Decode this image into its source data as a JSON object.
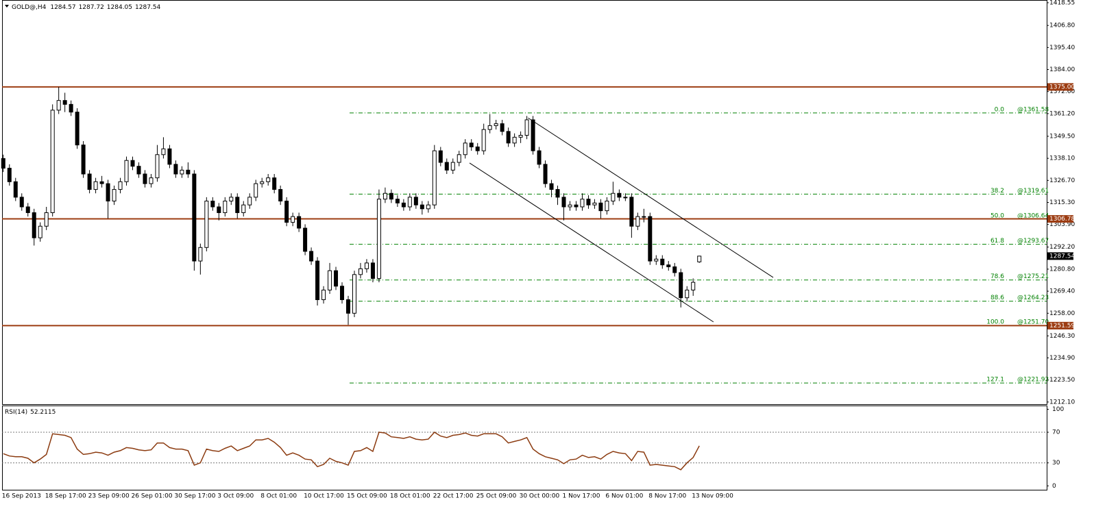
{
  "chart_data": {
    "type": "candlestick",
    "title": "GOLD@,H4",
    "categories": [
      "16 Sep 2013",
      null,
      null,
      null,
      null,
      null,
      null,
      "18 Sep 17:00",
      null,
      null,
      null,
      null,
      null,
      null,
      "23 Sep 09:00",
      null,
      null,
      null,
      null,
      null,
      null,
      "26 Sep 01:00",
      null,
      null,
      null,
      null,
      null,
      null,
      "30 Sep 17:00",
      null,
      null,
      null,
      null,
      null,
      null,
      "3 Oct 09:00",
      null,
      null,
      null,
      null,
      null,
      null,
      "8 Oct 01:00",
      null,
      null,
      null,
      null,
      null,
      null,
      "10 Oct 17:00",
      null,
      null,
      null,
      null,
      null,
      null,
      "15 Oct 09:00",
      null,
      null,
      null,
      null,
      null,
      null,
      "18 Oct 01:00",
      null,
      null,
      null,
      null,
      null,
      null,
      "22 Oct 17:00",
      null,
      null,
      null,
      null,
      null,
      null,
      "25 Oct 09:00",
      null,
      null,
      null,
      null,
      null,
      null,
      "30 Oct 00:00",
      null,
      null,
      null,
      null,
      null,
      null,
      "1 Nov 17:00",
      null,
      null,
      null,
      null,
      null,
      null,
      "6 Nov 01:00",
      null,
      null,
      null,
      null,
      null,
      null,
      "8 Nov 17:00",
      null,
      null,
      null,
      null,
      null,
      null,
      "13 Nov 09:00",
      null
    ],
    "open": [
      1338,
      1333,
      1326,
      1318,
      1313,
      1310,
      1297,
      1303,
      1310,
      1363,
      1368,
      1366,
      1362,
      1345,
      1330,
      1322,
      1326,
      1325,
      1316,
      1322,
      1326,
      1337,
      1334,
      1330,
      1325,
      1328,
      1340,
      1343,
      1335,
      1330,
      1332,
      1330,
      1285,
      1292,
      1316,
      1313,
      1310,
      1316,
      1318,
      1310,
      1314,
      1318,
      1325,
      1326,
      1328,
      1322,
      1316,
      1305,
      1308,
      1302,
      1290,
      1285,
      1265,
      1270,
      1280,
      1272,
      1265,
      1258,
      1278,
      1281,
      1284,
      1276,
      1317,
      1320,
      1317,
      1315,
      1313,
      1318,
      1314,
      1312,
      1314,
      1342,
      1336,
      1332,
      1336,
      1340,
      1346,
      1344,
      1342,
      1353,
      1355,
      1356,
      1352,
      1346,
      1349,
      1350,
      1358,
      1342,
      1335,
      1325,
      1322,
      1318,
      1313,
      1314,
      1313,
      1317,
      1314,
      1315,
      1311,
      1316,
      1320,
      1318,
      1318,
      1303,
      1308,
      1308,
      1285,
      1286,
      1283,
      1282,
      1279,
      1266,
      1270,
      1284.57
    ],
    "high": [
      1340,
      1335,
      1328,
      1320,
      1315,
      1312,
      1305,
      1313,
      1366,
      1375,
      1372,
      1368,
      1364,
      1347,
      1332,
      1328,
      1329,
      1327,
      1324,
      1328,
      1339,
      1339,
      1336,
      1332,
      1330,
      1345,
      1349,
      1345,
      1337,
      1334,
      1336,
      1332,
      1294,
      1318,
      1318,
      1315,
      1318,
      1320,
      1320,
      1316,
      1320,
      1327,
      1328,
      1330,
      1330,
      1324,
      1318,
      1310,
      1310,
      1304,
      1292,
      1287,
      1272,
      1284,
      1282,
      1274,
      1267,
      1280,
      1284,
      1286,
      1286,
      1322,
      1323,
      1322,
      1319,
      1317,
      1320,
      1320,
      1316,
      1316,
      1345,
      1344,
      1338,
      1338,
      1342,
      1348,
      1348,
      1346,
      1356,
      1361,
      1358,
      1358,
      1354,
      1351,
      1352,
      1360,
      1360,
      1344,
      1337,
      1327,
      1324,
      1320,
      1316,
      1316,
      1320,
      1319,
      1317,
      1317,
      1318,
      1326,
      1322,
      1320,
      1320,
      1310,
      1312,
      1310,
      1288,
      1288,
      1285,
      1284,
      1281,
      1272,
      1276,
      1287.72
    ],
    "low": [
      1331,
      1324,
      1316,
      1311,
      1308,
      1293,
      1295,
      1301,
      1308,
      1361,
      1362,
      1360,
      1343,
      1328,
      1320,
      1320,
      1323,
      1307,
      1314,
      1320,
      1324,
      1332,
      1328,
      1323,
      1323,
      1326,
      1338,
      1333,
      1328,
      1328,
      1328,
      1280,
      1278,
      1290,
      1311,
      1306,
      1308,
      1314,
      1307,
      1308,
      1312,
      1316,
      1323,
      1324,
      1320,
      1314,
      1303,
      1303,
      1300,
      1288,
      1283,
      1262,
      1263,
      1268,
      1270,
      1263,
      1252,
      1256,
      1276,
      1279,
      1274,
      1274,
      1315,
      1315,
      1313,
      1311,
      1311,
      1312,
      1309,
      1310,
      1312,
      1334,
      1330,
      1330,
      1334,
      1338,
      1342,
      1340,
      1340,
      1351,
      1353,
      1350,
      1344,
      1344,
      1346,
      1348,
      1340,
      1333,
      1323,
      1318,
      1314,
      1306,
      1311,
      1311,
      1311,
      1312,
      1312,
      1307,
      1309,
      1314,
      1316,
      1316,
      1297,
      1301,
      1305,
      1283,
      1283,
      1281,
      1280,
      1277,
      1261,
      1264,
      1267,
      1284.05
    ],
    "close": [
      1333,
      1326,
      1318,
      1313,
      1310,
      1297,
      1303,
      1310,
      1363,
      1368,
      1366,
      1362,
      1345,
      1330,
      1322,
      1326,
      1325,
      1316,
      1322,
      1326,
      1337,
      1334,
      1330,
      1325,
      1328,
      1340,
      1343,
      1335,
      1330,
      1332,
      1330,
      1285,
      1292,
      1316,
      1313,
      1310,
      1316,
      1318,
      1310,
      1314,
      1318,
      1325,
      1326,
      1328,
      1322,
      1316,
      1305,
      1308,
      1302,
      1290,
      1285,
      1265,
      1270,
      1280,
      1272,
      1265,
      1258,
      1278,
      1281,
      1284,
      1276,
      1317,
      1320,
      1317,
      1315,
      1313,
      1318,
      1314,
      1312,
      1314,
      1342,
      1336,
      1332,
      1336,
      1340,
      1346,
      1344,
      1342,
      1353,
      1355,
      1356,
      1352,
      1346,
      1349,
      1350,
      1358,
      1342,
      1335,
      1325,
      1322,
      1318,
      1313,
      1314,
      1313,
      1317,
      1314,
      1315,
      1311,
      1316,
      1320,
      1318,
      1318,
      1303,
      1308,
      1308,
      1285,
      1286,
      1283,
      1282,
      1279,
      1266,
      1270,
      1274,
      1287.54
    ],
    "up_color": "#ffffff",
    "down_color": "#000000",
    "xlim": [
      -0.2,
      169.4
    ],
    "ylim": [
      1211.0,
      1419.6
    ],
    "yticks": [
      1418.55,
      {
        "value": 1406.8,
        "label": "1406.80"
      },
      {
        "value": 1395.4,
        "label": "1395.40"
      },
      {
        "value": 1384,
        "label": "1384.00"
      },
      {
        "value": 1372.6,
        "label": "1372.60"
      },
      {
        "value": 1361.2,
        "label": "1361.20"
      },
      {
        "value": 1349.5,
        "label": "1349.50"
      },
      {
        "value": 1338.1,
        "label": "1338.10"
      },
      {
        "value": 1326.7,
        "label": "1326.70"
      },
      {
        "value": 1315.3,
        "label": "1315.30"
      },
      {
        "value": 1303.9,
        "label": "1303.90"
      },
      {
        "value": 1292.2,
        "label": "1292.20"
      },
      {
        "value": 1280.8,
        "label": "1280.80"
      },
      {
        "value": 1269.4,
        "label": "1269.40"
      },
      {
        "value": 1258,
        "label": "1258.00"
      },
      {
        "value": 1246.3,
        "label": "1246.30"
      },
      {
        "value": 1234.9,
        "label": "1234.90"
      },
      {
        "value": 1223.5,
        "label": "1223.50"
      },
      {
        "value": 1212.1,
        "label": "1212.10"
      }
    ],
    "levels": [
      {
        "value": 1375,
        "label": "1375.00"
      },
      {
        "value": 1306.78,
        "label": "1306.78"
      },
      {
        "value": 1251.59,
        "label": "1251.59"
      }
    ],
    "level_color": "#9c3c12",
    "fib": [
      {
        "level": "0.0",
        "price": {
          "value": 1361.58,
          "label": "@1361.58"
        }
      },
      {
        "level": "38.2",
        "price": {
          "value": 1319.61,
          "label": "@1319.61"
        }
      },
      {
        "level": "50.0",
        "price": {
          "value": 1306.64,
          "label": "@1306.64"
        }
      },
      {
        "level": "61.8",
        "price": {
          "value": 1293.67,
          "label": "@1293.67"
        }
      },
      {
        "level": "78.6",
        "price": {
          "value": 1275.21,
          "label": "@1275.21"
        }
      },
      {
        "level": "88.6",
        "price": {
          "value": 1264.23,
          "label": "@1264.23"
        }
      },
      {
        "level": "100.0",
        "price": {
          "value": 1251.7,
          "label": "@1251.70"
        }
      },
      {
        "level": "127.1",
        "price": {
          "value": 1221.92,
          "label": "@1221.92"
        }
      }
    ],
    "fib_color": "#008000",
    "trendlines": [
      {
        "x": [
          85.2,
          125
        ],
        "y": [
          1359,
          1276.5
        ]
      },
      {
        "x": [
          75.7,
          115.3
        ],
        "y": [
          1335.7,
          1253.5
        ]
      }
    ],
    "rsi": {
      "title": "RSI(14)",
      "color": "#8b3a0f",
      "ylim": [
        -6,
        104
      ],
      "yticks": [
        0,
        30,
        70,
        100
      ],
      "values": [
        42,
        39,
        38,
        38,
        36,
        30,
        35,
        41,
        68,
        67,
        66,
        63,
        48,
        41,
        42,
        44,
        43,
        40,
        44,
        46,
        50,
        49,
        47,
        46,
        47,
        56,
        56,
        50,
        48,
        48,
        46,
        27,
        30,
        48,
        46,
        45,
        49,
        52,
        46,
        49,
        52,
        60,
        60,
        62,
        57,
        50,
        40,
        43,
        40,
        35,
        34,
        25,
        28,
        36,
        32,
        30,
        27,
        45,
        46,
        50,
        45,
        70,
        69,
        64,
        63,
        62,
        64,
        61,
        60,
        61,
        70,
        65,
        63,
        66,
        67,
        69,
        66,
        65,
        68,
        68,
        68,
        64,
        56,
        58,
        60,
        63,
        48,
        42,
        38,
        36,
        34,
        29,
        34,
        35,
        40,
        37,
        38,
        35,
        41,
        45,
        43,
        42,
        33,
        45,
        44,
        27,
        28,
        27,
        26,
        25,
        21,
        30,
        37,
        52.2115
      ]
    }
  }
}
